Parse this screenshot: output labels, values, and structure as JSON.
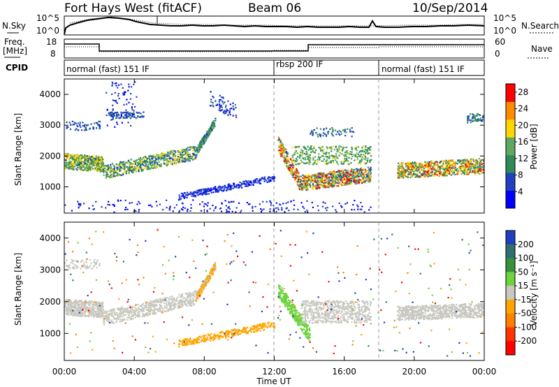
{
  "header": {
    "radar": "Fort Hays West (fitACF)",
    "beam": "Beam 06",
    "date": "10/Sep/2014"
  },
  "labels": {
    "nsky": "N.Sky",
    "nsearch": "N.Search",
    "freq_line1": "Freq.",
    "freq_line2": "[MHz]",
    "nave": "Nave",
    "cpid": "CPID"
  },
  "chart_data": [
    {
      "type": "line",
      "name": "noise-panel",
      "left_axis_ticks": [
        "10^5",
        "10^0"
      ],
      "right_axis_ticks": [
        "10^5",
        "10^0"
      ]
    },
    {
      "type": "line",
      "name": "frequency-panel",
      "left_axis_ticks": [
        "18",
        "8"
      ],
      "right_axis_ticks": [
        "60",
        "0"
      ]
    },
    {
      "type": "table",
      "name": "cpid-panel",
      "modes": [
        {
          "label": "normal (fast) 151 IF",
          "start_hour": 0
        },
        {
          "label": "rbsp 200 IF",
          "start_hour": 12
        },
        {
          "label": "normal (fast) 151 IF",
          "start_hour": 18
        }
      ]
    },
    {
      "type": "heatmap",
      "name": "power-panel",
      "ylabel": "Slant Range [km]",
      "ylim": [
        150,
        4500
      ],
      "yticks": [
        "1000",
        "2000",
        "3000",
        "4000"
      ],
      "xlim": [
        0,
        24
      ],
      "colorbar_label": "Power [dB]",
      "colorbar_ticks": [
        "4",
        "8",
        "12",
        "16",
        "20",
        "24",
        "28"
      ],
      "colorbar_range": [
        0,
        30
      ],
      "colorbar_colors": [
        "#0000ff",
        "#2040c0",
        "#2e8b57",
        "#5fa85f",
        "#ffd700",
        "#ff8c00",
        "#ff0000"
      ]
    },
    {
      "type": "heatmap",
      "name": "velocity-panel",
      "ylabel": "Slant Range [km]",
      "ylim": [
        150,
        4500
      ],
      "yticks": [
        "1000",
        "2000",
        "3000",
        "4000"
      ],
      "xlim": [
        0,
        24
      ],
      "colorbar_label": "Velocity [m s⁻¹]",
      "colorbar_ticks": [
        "200",
        "100",
        "50",
        "15",
        "-15",
        "-50",
        "-100",
        "-200"
      ],
      "colorbar_colors": [
        "#1f3fbf",
        "#2f6f6f",
        "#3a8f3a",
        "#6fd33f",
        "#c8c8c0",
        "#ffa500",
        "#ff7f00",
        "#ff3300",
        "#ff0000"
      ]
    }
  ],
  "xaxis": {
    "label": "Time UT",
    "ticks": [
      "00:00",
      "04:00",
      "08:00",
      "12:00",
      "16:00",
      "20:00",
      "00:00"
    ]
  }
}
